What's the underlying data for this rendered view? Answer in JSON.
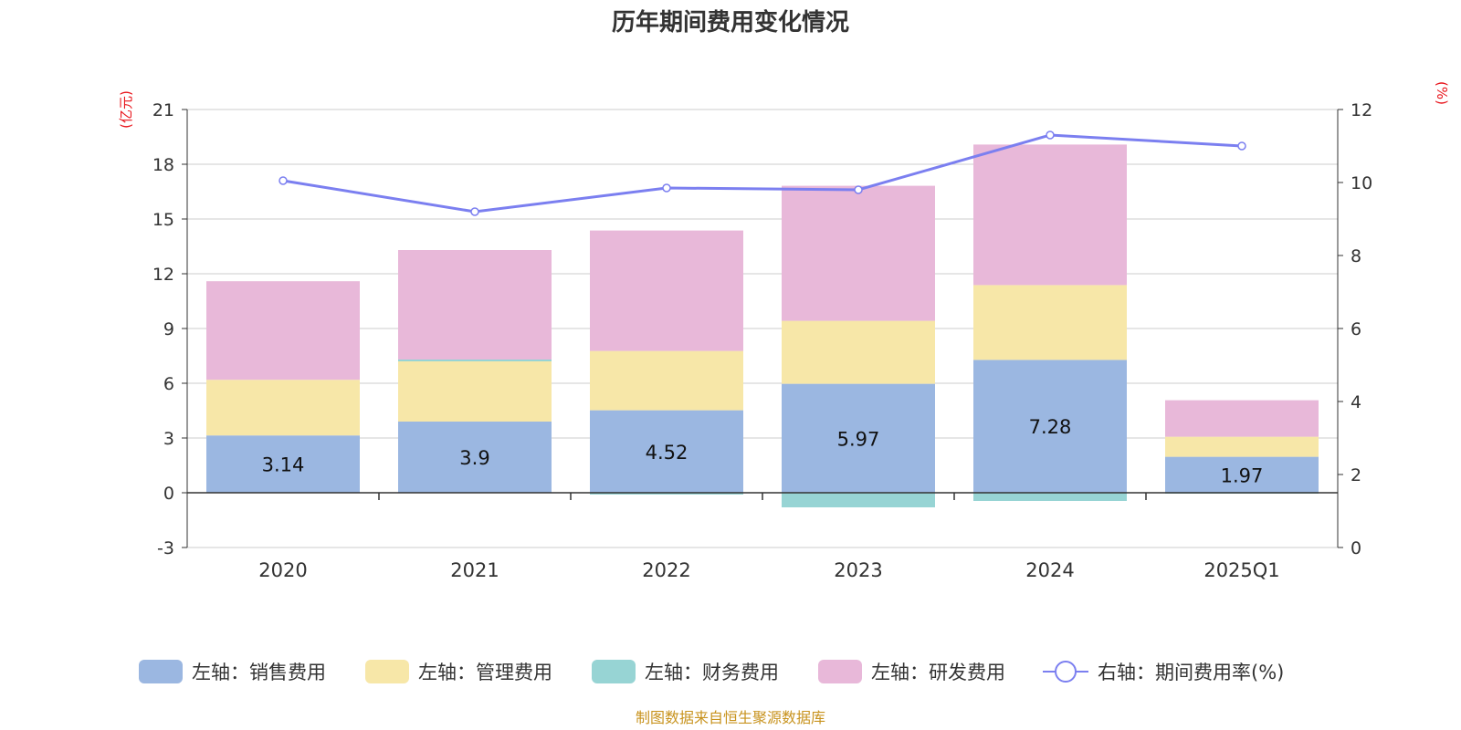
{
  "chart_data": {
    "type": "bar",
    "stacked": true,
    "title": "历年期间费用变化情况",
    "categories": [
      "2020",
      "2021",
      "2022",
      "2023",
      "2024",
      "2025Q1"
    ],
    "left_axis": {
      "unit_label": "(亿元)",
      "ylim": [
        -3,
        21
      ],
      "ticks": [
        -3,
        0,
        3,
        6,
        9,
        12,
        15,
        18,
        21
      ]
    },
    "right_axis": {
      "unit_label": "(%)",
      "ylim": [
        0,
        12
      ],
      "ticks": [
        0,
        2,
        4,
        6,
        8,
        10,
        12
      ]
    },
    "series": [
      {
        "name": "左轴：销售费用",
        "axis": "left",
        "color": "#9BB7E1",
        "values": [
          3.14,
          3.9,
          4.52,
          5.97,
          7.28,
          1.97
        ],
        "data_labels": [
          "3.14",
          "3.9",
          "4.52",
          "5.97",
          "7.28",
          "1.97"
        ]
      },
      {
        "name": "左轴：管理费用",
        "axis": "left",
        "color": "#F7E7A8",
        "values": [
          3.05,
          3.3,
          3.25,
          3.45,
          4.1,
          1.1
        ]
      },
      {
        "name": "左轴：财务费用",
        "axis": "left",
        "color": "#97D4D4",
        "values": [
          0.0,
          0.1,
          -0.1,
          -0.8,
          -0.45,
          -0.05
        ]
      },
      {
        "name": "左轴：研发费用",
        "axis": "left",
        "color": "#E8B8D9",
        "values": [
          5.4,
          6.0,
          6.6,
          7.4,
          7.7,
          2.0
        ]
      },
      {
        "name": "右轴：期间费用率(%)",
        "axis": "right",
        "type": "line",
        "color": "#7B7FF0",
        "values": [
          10.05,
          9.2,
          9.85,
          9.8,
          11.3,
          11.0
        ]
      }
    ],
    "legend_position": "bottom",
    "grid": true
  },
  "source_note": "制图数据来自恒生聚源数据库",
  "colors": {
    "axis_unit": "#E8141B",
    "source": "#C8931E",
    "grid": "#CCCCCC",
    "axis": "#333333"
  }
}
